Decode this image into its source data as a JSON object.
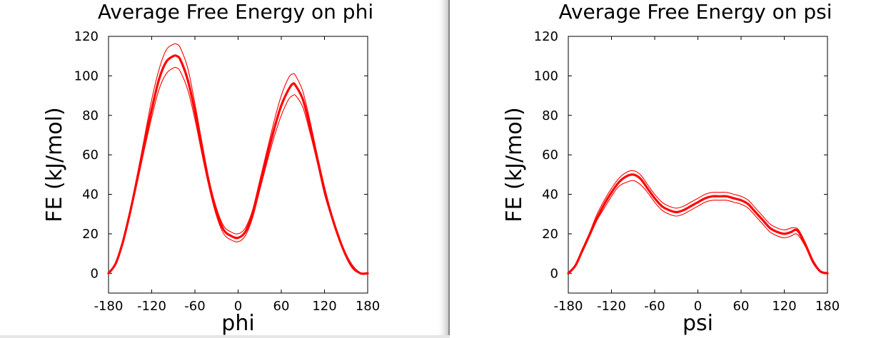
{
  "chart_data": [
    {
      "type": "line",
      "title": "Average Free Energy on phi",
      "xlabel": "phi",
      "ylabel": "FE (kJ/mol)",
      "xlim": [
        -180,
        180
      ],
      "ylim": [
        -10,
        120
      ],
      "xticks": [
        -180,
        -120,
        -60,
        0,
        60,
        120,
        180
      ],
      "yticks": [
        0,
        20,
        40,
        60,
        80,
        100,
        120
      ],
      "grid": false,
      "line_color": "#ff0000",
      "series": [
        {
          "role": "mean",
          "x": [
            -180,
            -170,
            -160,
            -150,
            -140,
            -130,
            -120,
            -110,
            -100,
            -90,
            -85,
            -80,
            -70,
            -60,
            -50,
            -40,
            -30,
            -20,
            -10,
            0,
            10,
            20,
            30,
            40,
            50,
            60,
            70,
            76,
            80,
            90,
            100,
            110,
            120,
            130,
            140,
            150,
            160,
            170,
            180
          ],
          "y": [
            0,
            5,
            16,
            31,
            48,
            66,
            83,
            98,
            107,
            110,
            110,
            108,
            98,
            82,
            63,
            45,
            31,
            22,
            19,
            18,
            21,
            30,
            44,
            59,
            73,
            85,
            93,
            96,
            95,
            88,
            74,
            58,
            42,
            29,
            18,
            9,
            3,
            0,
            0
          ]
        },
        {
          "role": "upper",
          "x": [
            -180,
            -170,
            -160,
            -150,
            -140,
            -130,
            -120,
            -110,
            -100,
            -90,
            -85,
            -80,
            -70,
            -60,
            -50,
            -40,
            -30,
            -20,
            -10,
            0,
            10,
            20,
            30,
            40,
            50,
            60,
            70,
            76,
            80,
            90,
            100,
            110,
            120,
            130,
            140,
            150,
            160,
            170,
            180
          ],
          "y": [
            0,
            5,
            16,
            32,
            50,
            69,
            88,
            103,
            113,
            116,
            116,
            114,
            104,
            86,
            66,
            47,
            33,
            24,
            21,
            20,
            23,
            32,
            47,
            62,
            77,
            90,
            99,
            101,
            100,
            92,
            77,
            60,
            44,
            30,
            19,
            9,
            3,
            0,
            0
          ]
        },
        {
          "role": "lower",
          "x": [
            -180,
            -170,
            -160,
            -150,
            -140,
            -130,
            -120,
            -110,
            -100,
            -90,
            -85,
            -80,
            -70,
            -60,
            -50,
            -40,
            -30,
            -20,
            -10,
            0,
            10,
            20,
            30,
            40,
            50,
            60,
            70,
            76,
            80,
            90,
            100,
            110,
            120,
            130,
            140,
            150,
            160,
            170,
            180
          ],
          "y": [
            0,
            5,
            15,
            30,
            46,
            63,
            79,
            93,
            101,
            104,
            104,
            102,
            93,
            78,
            60,
            43,
            29,
            20,
            17,
            16,
            19,
            28,
            42,
            56,
            69,
            80,
            88,
            90,
            90,
            84,
            71,
            56,
            40,
            28,
            17,
            8,
            2,
            0,
            0
          ]
        }
      ]
    },
    {
      "type": "line",
      "title": "Average Free Energy on psi",
      "xlabel": "psi",
      "ylabel": "FE (kJ/mol)",
      "xlim": [
        -180,
        180
      ],
      "ylim": [
        -10,
        120
      ],
      "xticks": [
        -180,
        -120,
        -60,
        0,
        60,
        120,
        180
      ],
      "yticks": [
        0,
        20,
        40,
        60,
        80,
        100,
        120
      ],
      "grid": false,
      "line_color": "#ff0000",
      "series": [
        {
          "role": "mean",
          "x": [
            -180,
            -170,
            -160,
            -150,
            -140,
            -130,
            -120,
            -110,
            -100,
            -90,
            -80,
            -70,
            -60,
            -50,
            -40,
            -30,
            -20,
            -10,
            0,
            10,
            20,
            30,
            40,
            50,
            60,
            70,
            80,
            90,
            100,
            110,
            120,
            130,
            135,
            140,
            150,
            160,
            170,
            180
          ],
          "y": [
            0,
            4,
            12,
            20,
            28,
            35,
            41,
            46,
            49,
            50,
            48,
            43,
            38,
            34,
            32,
            31,
            32,
            34,
            36,
            38,
            39,
            39,
            39,
            38,
            37,
            35,
            31,
            27,
            23,
            21,
            20,
            21,
            22,
            21,
            14,
            6,
            1,
            0
          ]
        },
        {
          "role": "upper",
          "x": [
            -180,
            -170,
            -160,
            -150,
            -140,
            -130,
            -120,
            -110,
            -100,
            -90,
            -80,
            -70,
            -60,
            -50,
            -40,
            -30,
            -20,
            -10,
            0,
            10,
            20,
            30,
            40,
            50,
            60,
            70,
            80,
            90,
            100,
            110,
            120,
            130,
            135,
            140,
            150,
            160,
            170,
            180
          ],
          "y": [
            0,
            4,
            12,
            21,
            30,
            37,
            43,
            48,
            51,
            52,
            50,
            45,
            40,
            36,
            34,
            33,
            34,
            36,
            38,
            40,
            41,
            41,
            41,
            40,
            39,
            37,
            33,
            29,
            25,
            23,
            22,
            23,
            23,
            22,
            15,
            6,
            1,
            0
          ]
        },
        {
          "role": "lower",
          "x": [
            -180,
            -170,
            -160,
            -150,
            -140,
            -130,
            -120,
            -110,
            -100,
            -90,
            -80,
            -70,
            -60,
            -50,
            -40,
            -30,
            -20,
            -10,
            0,
            10,
            20,
            30,
            40,
            50,
            60,
            70,
            80,
            90,
            100,
            110,
            120,
            130,
            135,
            140,
            150,
            160,
            170,
            180
          ],
          "y": [
            0,
            4,
            11,
            19,
            27,
            33,
            39,
            44,
            46,
            47,
            45,
            41,
            36,
            32,
            30,
            29,
            30,
            32,
            34,
            36,
            37,
            37,
            37,
            36,
            35,
            33,
            29,
            25,
            21,
            19,
            18,
            19,
            20,
            19,
            13,
            5,
            1,
            0
          ]
        }
      ]
    }
  ]
}
